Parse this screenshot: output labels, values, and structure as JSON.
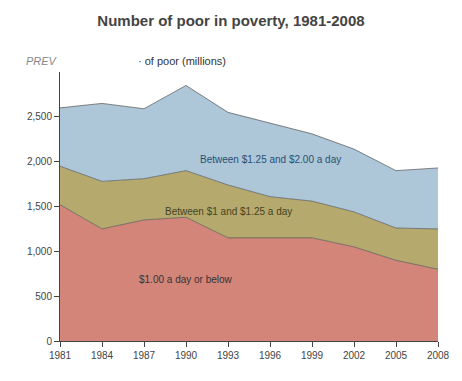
{
  "chart_data": {
    "type": "stacked_area",
    "title": "Number of poor in poverty, 1981-2008",
    "ylabel": "· of poor (millions)",
    "annotations": [
      "PREV"
    ],
    "x": [
      1981,
      1984,
      1987,
      1990,
      1993,
      1996,
      1999,
      2002,
      2005,
      2008
    ],
    "series": [
      {
        "name": "$1.00 a day or below",
        "color": "#d4857a",
        "values": [
          1520,
          1250,
          1350,
          1380,
          1150,
          1150,
          1150,
          1050,
          900,
          800
        ]
      },
      {
        "name": "Between $1 and $1.25 a day",
        "color": "#b5a96e",
        "values": [
          430,
          530,
          460,
          520,
          590,
          460,
          410,
          390,
          360,
          450
        ]
      },
      {
        "name": "Between $1.25 and $2.00 a day",
        "color": "#adc6d8",
        "values": [
          650,
          870,
          780,
          950,
          810,
          820,
          750,
          700,
          640,
          680
        ]
      }
    ],
    "stacked": true,
    "xlim": [
      1981,
      2008
    ],
    "xticks": [
      1981,
      1984,
      1987,
      1990,
      1993,
      1996,
      1999,
      2002,
      2005,
      2008
    ],
    "ylim": [
      0,
      3000
    ],
    "yticks": [
      0,
      500,
      {
        "value": 1000,
        "label": "1,000"
      },
      {
        "value": 1500,
        "label": "1,500"
      },
      {
        "value": 2000,
        "label": "2,000"
      },
      {
        "value": 2500,
        "label": "2,500"
      }
    ],
    "grid": false
  }
}
